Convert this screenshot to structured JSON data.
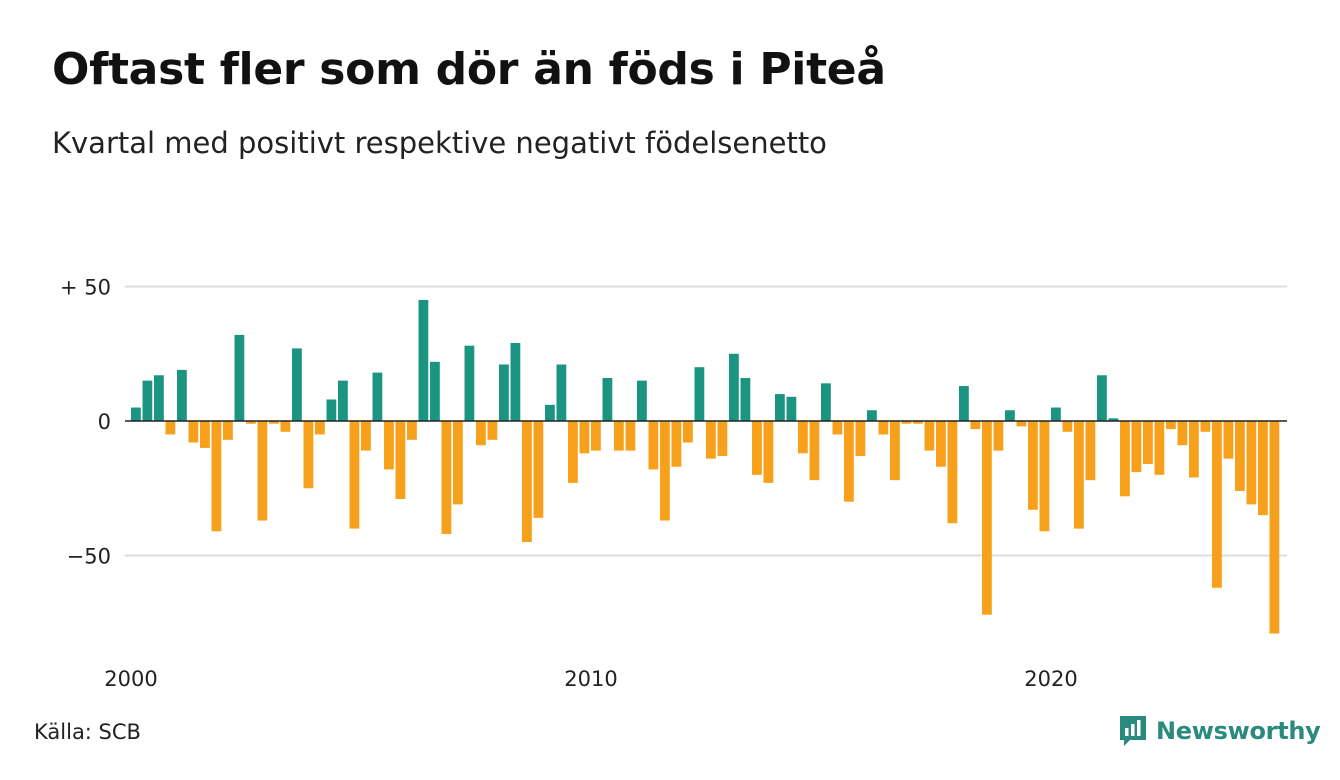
{
  "title": "Oftast fler som dör än föds i Piteå",
  "subtitle": "Kvartal med positivt respektive negativt födelsenetto",
  "source": "Källa: SCB",
  "brand": {
    "name": "Newsworthy",
    "icon": "newsworthy-logo-icon"
  },
  "colors": {
    "positive": "#1b9482",
    "negative": "#f7a01c",
    "grid": "#dddddd",
    "zero": "#222222"
  },
  "chart_data": {
    "type": "bar",
    "title": "Oftast fler som dör än föds i Piteå",
    "subtitle": "Kvartal med positivt respektive negativt födelsenetto",
    "x_start": 2000,
    "x_unit": "quarter",
    "x_ticks": [
      2000,
      2010,
      2020
    ],
    "y_ticks": [
      {
        "value": 50,
        "label": "+ 50"
      },
      {
        "value": 0,
        "label": "0"
      },
      {
        "value": -50,
        "label": "−50"
      }
    ],
    "ylim": [
      -80,
      50
    ],
    "grid": true,
    "values": [
      5,
      15,
      17,
      -5,
      19,
      -8,
      -10,
      -41,
      -7,
      32,
      -1,
      -37,
      -1,
      -4,
      27,
      -25,
      -5,
      8,
      15,
      -40,
      -11,
      18,
      -18,
      -29,
      -7,
      45,
      22,
      -42,
      -31,
      28,
      -9,
      -7,
      21,
      29,
      -45,
      -36,
      6,
      21,
      -23,
      -12,
      -11,
      16,
      -11,
      -11,
      15,
      -18,
      -37,
      -17,
      -8,
      20,
      -14,
      -13,
      25,
      16,
      -20,
      -23,
      10,
      9,
      -12,
      -22,
      14,
      -5,
      -30,
      -13,
      4,
      -5,
      -22,
      -1,
      -1,
      -11,
      -17,
      -38,
      13,
      -3,
      -72,
      -11,
      4,
      -2,
      -33,
      -41,
      5,
      -4,
      -40,
      -22,
      17,
      1,
      -28,
      -19,
      -16,
      -20,
      -3,
      -9,
      -21,
      -4,
      -62,
      -14,
      -26,
      -31,
      -35,
      -79
    ]
  }
}
